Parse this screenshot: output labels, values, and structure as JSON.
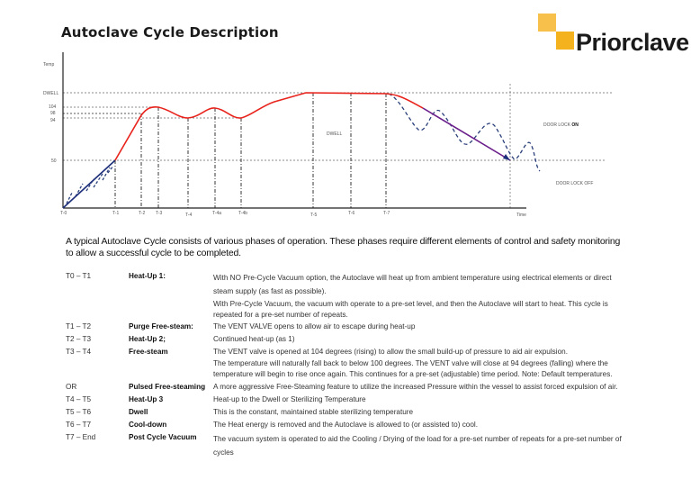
{
  "header": {
    "title": "Autoclave Cycle Description",
    "logo_text": "Priorclave",
    "brand_color": "#f3b21e"
  },
  "diagram": {
    "y_axis_label": "Temp",
    "x_axis_label": "Time",
    "y_levels": [
      "DWELL",
      "104",
      "98",
      "94",
      "50"
    ],
    "time_markers": [
      "T-0",
      "T-1",
      "T-2",
      "T-3",
      "T-4",
      "T-4a",
      "T-4b",
      "T-5",
      "T-6",
      "T-7"
    ],
    "dwell_label": "DWELL",
    "door_lock_on_prefix": "DOOR LOCK ",
    "door_lock_on_state": "ON",
    "door_lock_off": "DOOR LOCK OFF",
    "colors": {
      "heat": "#e8231c",
      "cool": "#1d2f7a",
      "dashed": "#2a3f7a"
    }
  },
  "intro": "A typical Autoclave Cycle consists of various phases of operation.  These phases require different elements of control and safety monitoring to allow a successful cycle to be completed.",
  "phases": [
    {
      "range": "T0 – T1",
      "name": "Heat-Up 1:",
      "desc": "With NO Pre-Cycle Vacuum option, the Autoclave will heat up from ambient temperature using electrical elements or direct steam supply (as fast as possible)."
    },
    {
      "range": "",
      "name": "",
      "desc": "With Pre-Cycle Vacuum, the vacuum with operate to a pre-set level, and then the Autoclave will start to heat.  This cycle is repeated for a pre-set number of repeats."
    },
    {
      "range": "T1 – T2",
      "name": "Purge Free-steam:",
      "desc": "The VENT VALVE opens to allow air to escape during heat-up"
    },
    {
      "range": "T2 – T3",
      "name": "Heat-Up 2;",
      "desc": "Continued heat-up (as 1)"
    },
    {
      "range": "T3 – T4",
      "name": "Free-steam",
      "desc": "The VENT valve is opened at 104 degrees (rising) to allow the small build-up of pressure to aid air expulsion."
    },
    {
      "range": "",
      "name": "",
      "desc": "The temperature will naturally fall back to below 100 degrees.  The VENT valve will close at 94 degrees (falling) where the temperature will begin to rise once again.  This continues for a pre-set (adjustable) time period.  Note: Default temperatures."
    },
    {
      "range": "OR",
      "name": "Pulsed Free-steaming",
      "desc": "A more aggressive Free-Steaming feature to utilize the increased Pressure within the vessel to assist forced expulsion of air."
    },
    {
      "range": "T4 – T5",
      "name": "Heat-Up 3",
      "desc": "Heat-up to the Dwell or Sterilizing Temperature"
    },
    {
      "range": "T5 – T6",
      "name": "Dwell",
      "desc": "This is the constant, maintained stable sterilizing temperature"
    },
    {
      "range": "T6 – T7",
      "name": "Cool-down",
      "desc": "The Heat energy is removed and the Autoclave is allowed to (or assisted to) cool."
    },
    {
      "range": "T7 – End",
      "name": "Post Cycle Vacuum",
      "desc": "The vacuum system is operated to aid the Cooling / Drying of the load for a pre-set number of repeats for a pre-set number of cycles"
    }
  ]
}
